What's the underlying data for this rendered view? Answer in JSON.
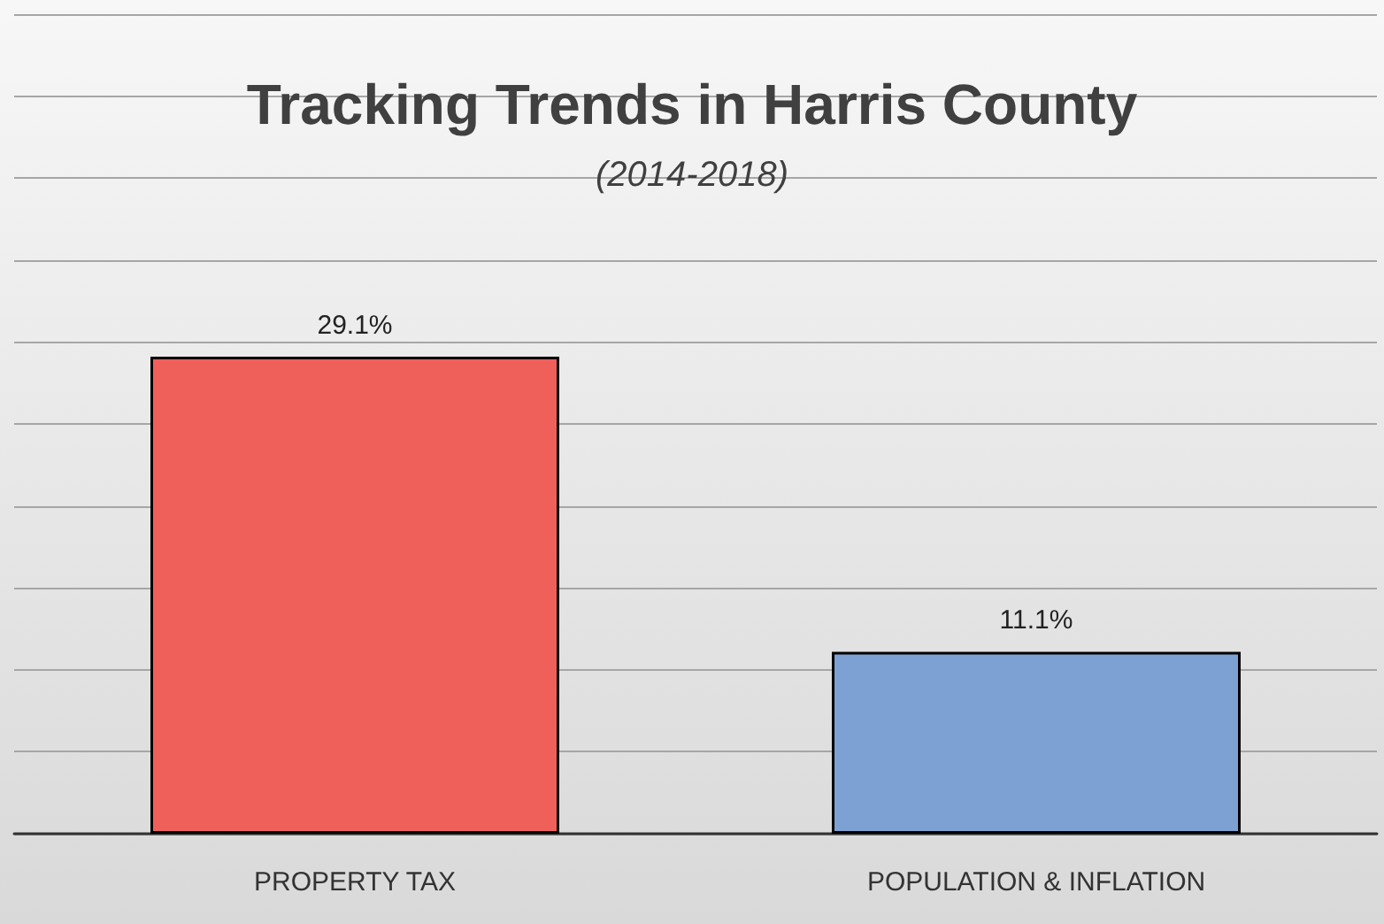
{
  "chart_data": {
    "type": "bar",
    "title": "Tracking Trends in Harris County",
    "subtitle": "(2014-2018)",
    "categories": [
      "PROPERTY TAX",
      "POPULATION & INFLATION"
    ],
    "values": [
      29.1,
      11.1
    ],
    "colors": [
      "#f0605a",
      "#7ea1d4"
    ],
    "value_labels": [
      "29.1%",
      "11.1%"
    ],
    "ylim": [
      0,
      50
    ],
    "yticks": [
      0,
      5,
      10,
      15,
      20,
      25,
      30,
      35,
      40,
      45,
      50
    ],
    "tick_labels": "x",
    "grid": "y"
  }
}
